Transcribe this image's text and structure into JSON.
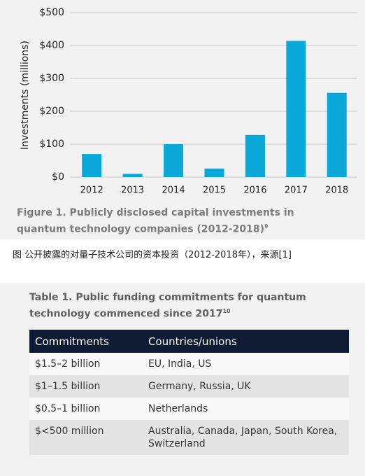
{
  "chart_data": {
    "type": "bar",
    "y_label": "Investments (millions)",
    "categories": [
      "2012",
      "2013",
      "2014",
      "2015",
      "2016",
      "2017",
      "2018"
    ],
    "values": [
      70,
      10,
      100,
      26,
      128,
      414,
      256
    ],
    "color": "#0aa8d8",
    "ylim": [
      0,
      500
    ],
    "yticks": [
      {
        "value": 0,
        "label": "$0"
      },
      {
        "value": 100,
        "label": "$100"
      },
      {
        "value": 200,
        "label": "$200"
      },
      {
        "value": 300,
        "label": "$300"
      },
      {
        "value": 400,
        "label": "$400"
      },
      {
        "value": 500,
        "label": "$500"
      }
    ],
    "grid": true
  },
  "figure_caption": {
    "text": "Figure 1. Publicly disclosed capital investments in quantum technology companies (2012-2018)",
    "note": "9"
  },
  "caption_cn": "图 公开披露的对量子技术公司的资本投资（2012-2018年），来源[1]",
  "table": {
    "title": "Table 1. Public funding commitments for quantum technology commenced since 2017",
    "title_note": "10",
    "columns": [
      "Commitments",
      "Countries/unions"
    ],
    "rows": [
      [
        "$1.5–2 billion",
        "EU, India, US"
      ],
      [
        "$1–1.5 billion",
        "Germany, Russia, UK"
      ],
      [
        "$0.5–1 billion",
        "Netherlands"
      ],
      [
        "$<500 million",
        "Australia, Canada, Japan, South Korea, Switzerland"
      ]
    ]
  }
}
